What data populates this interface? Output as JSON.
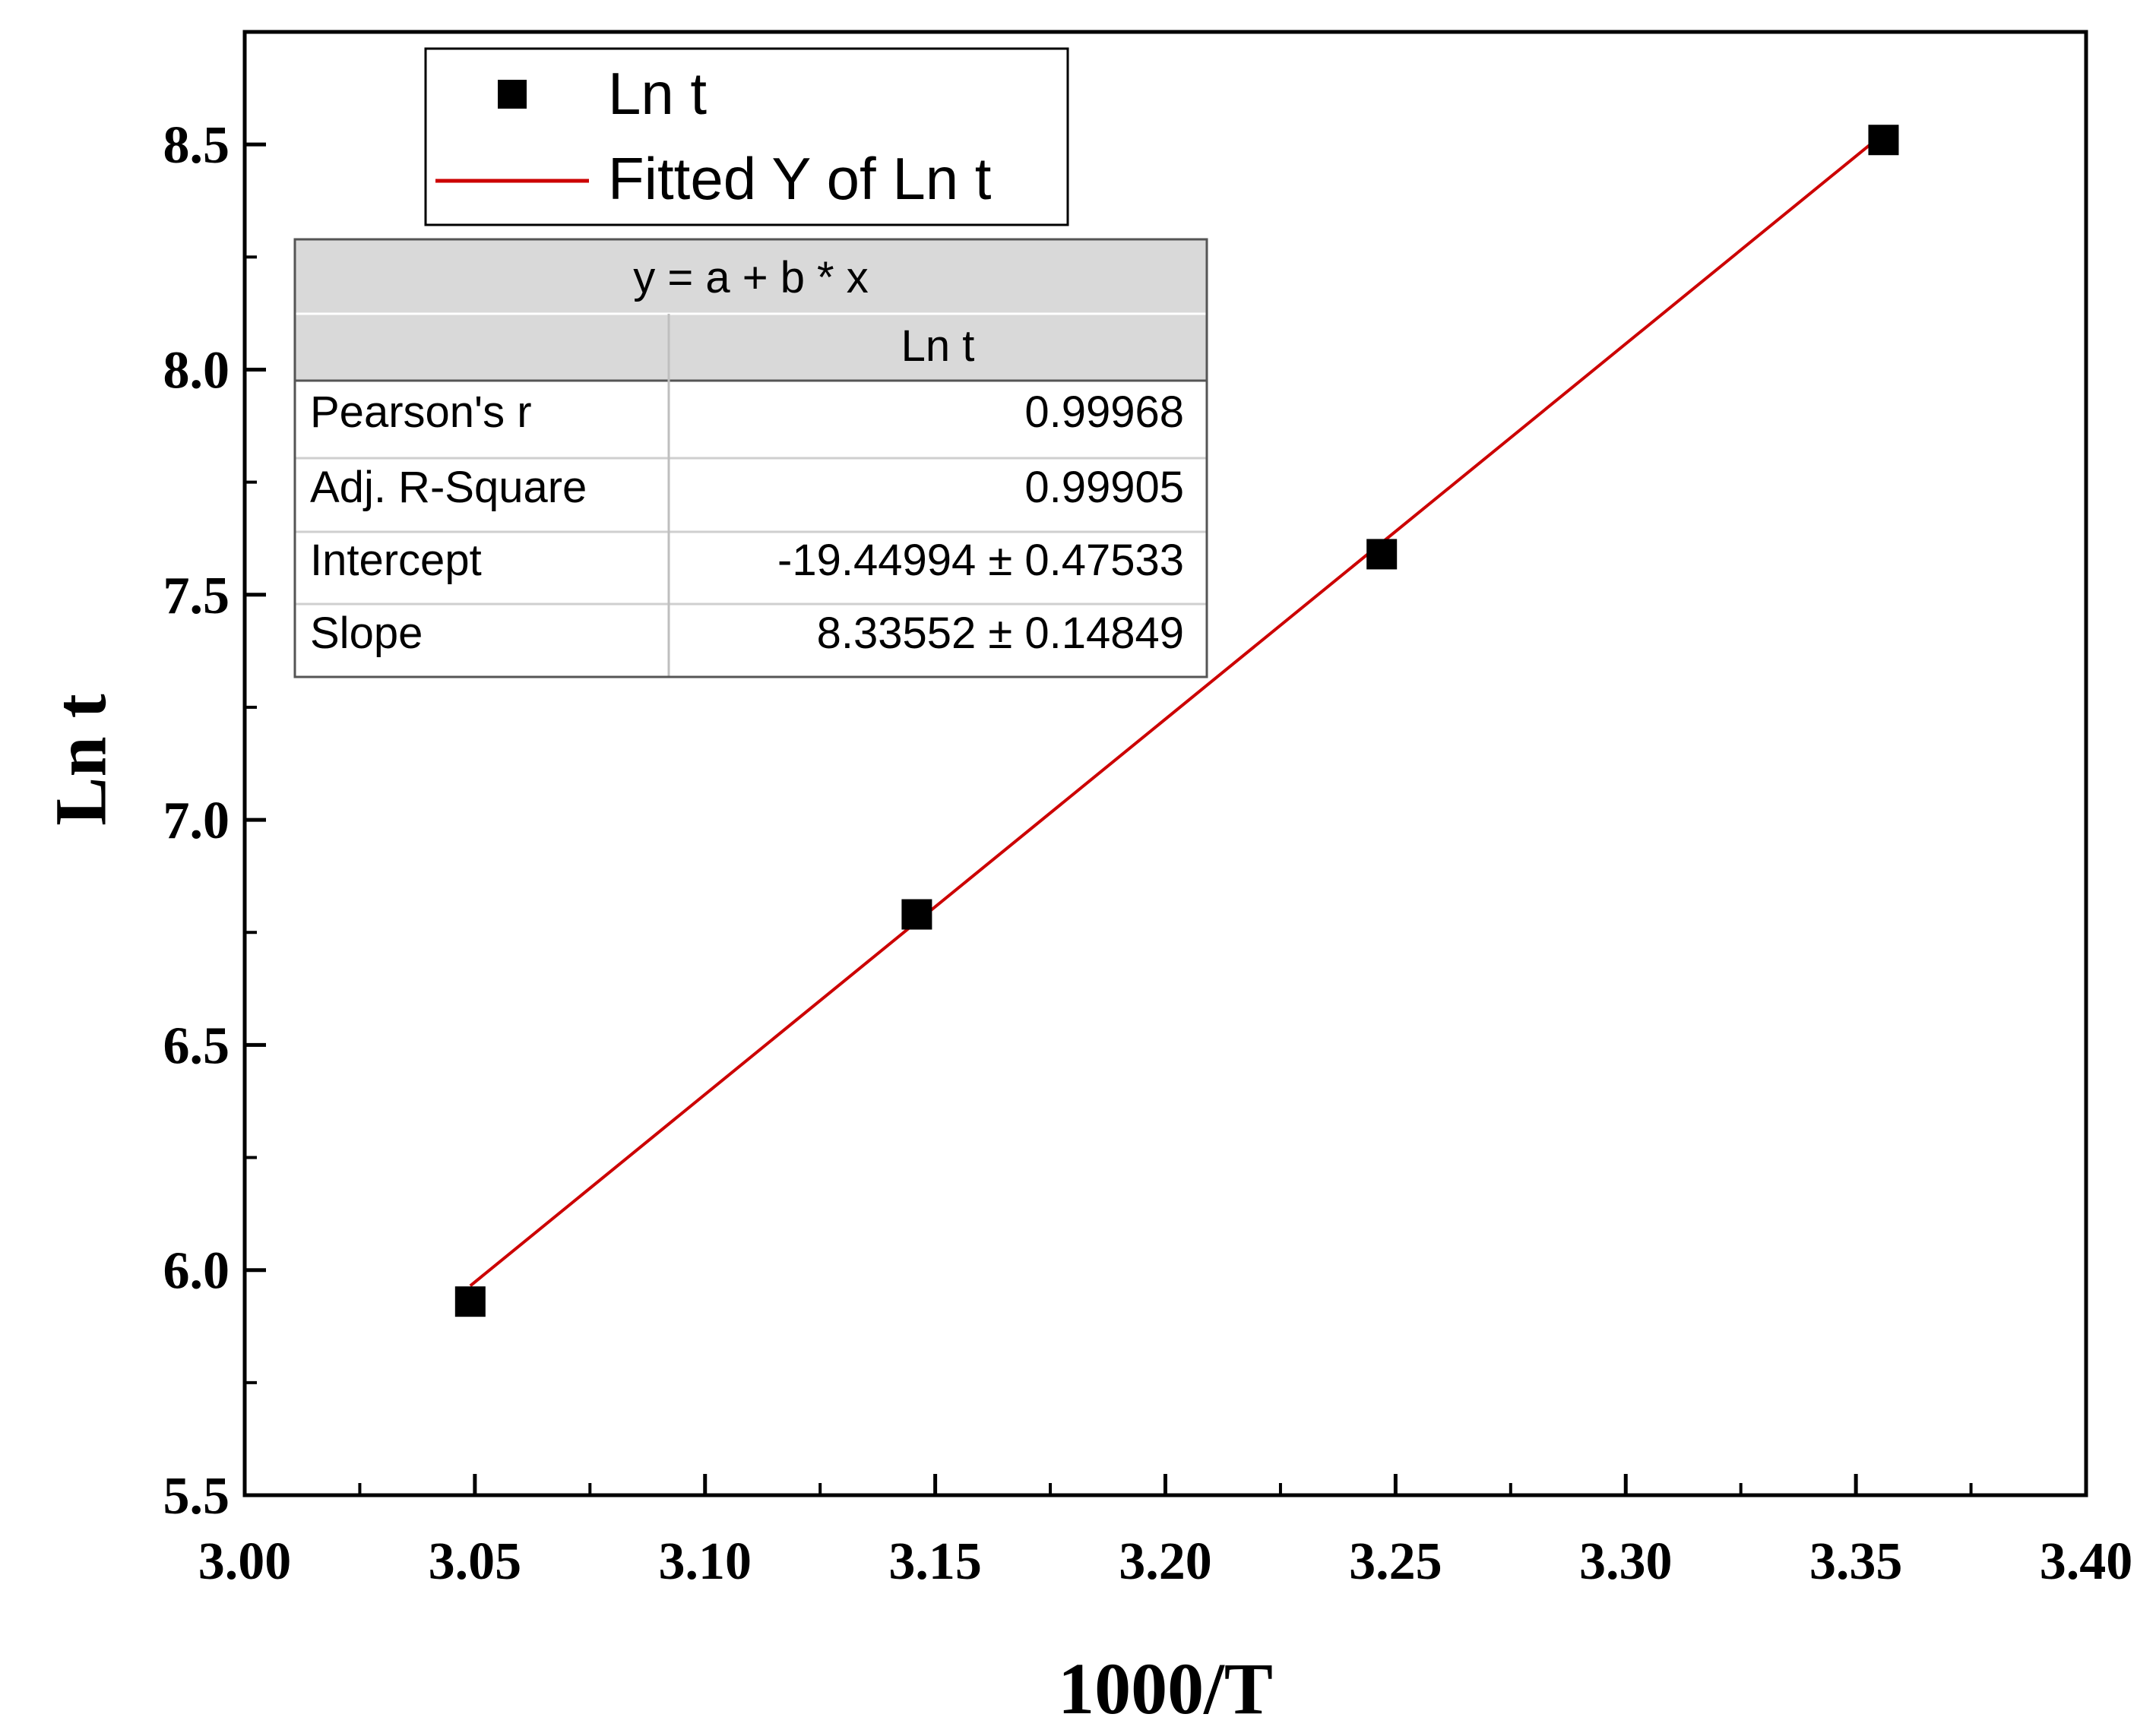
{
  "chart_data": {
    "type": "scatter",
    "xlabel": "1000/T",
    "ylabel": "Ln t",
    "xlim": [
      3.0,
      3.4
    ],
    "ylim": [
      5.5,
      8.75
    ],
    "x_ticks": [
      "3.00",
      "3.05",
      "3.10",
      "3.15",
      "3.20",
      "3.25",
      "3.30",
      "3.35",
      "3.40"
    ],
    "y_ticks": [
      "5.5",
      "6.0",
      "6.5",
      "7.0",
      "7.5",
      "8.0",
      "8.5"
    ],
    "grid": false,
    "legend_position": "top-left",
    "series": [
      {
        "name": "Ln t",
        "kind": "scatter",
        "marker": "square",
        "color": "#000000",
        "points": [
          {
            "x": 3.049,
            "y": 5.93
          },
          {
            "x": 3.146,
            "y": 6.79
          },
          {
            "x": 3.247,
            "y": 7.59
          },
          {
            "x": 3.356,
            "y": 8.51
          }
        ]
      },
      {
        "name": "Fitted Y of Ln t",
        "kind": "line",
        "color": "#cc0000",
        "x_range": [
          3.049,
          3.356
        ],
        "intercept": -19.44994,
        "slope": 8.33552
      }
    ],
    "fit_table": {
      "equation": "y = a + b * x",
      "column_header": "Ln t",
      "rows": [
        {
          "label": "Pearson's r",
          "value": "0.99968"
        },
        {
          "label": "Adj. R-Square",
          "value": "0.99905"
        },
        {
          "label": "Intercept",
          "value": "-19.44994 ± 0.47533"
        },
        {
          "label": "Slope",
          "value": "8.33552 ± 0.14849"
        }
      ]
    }
  }
}
